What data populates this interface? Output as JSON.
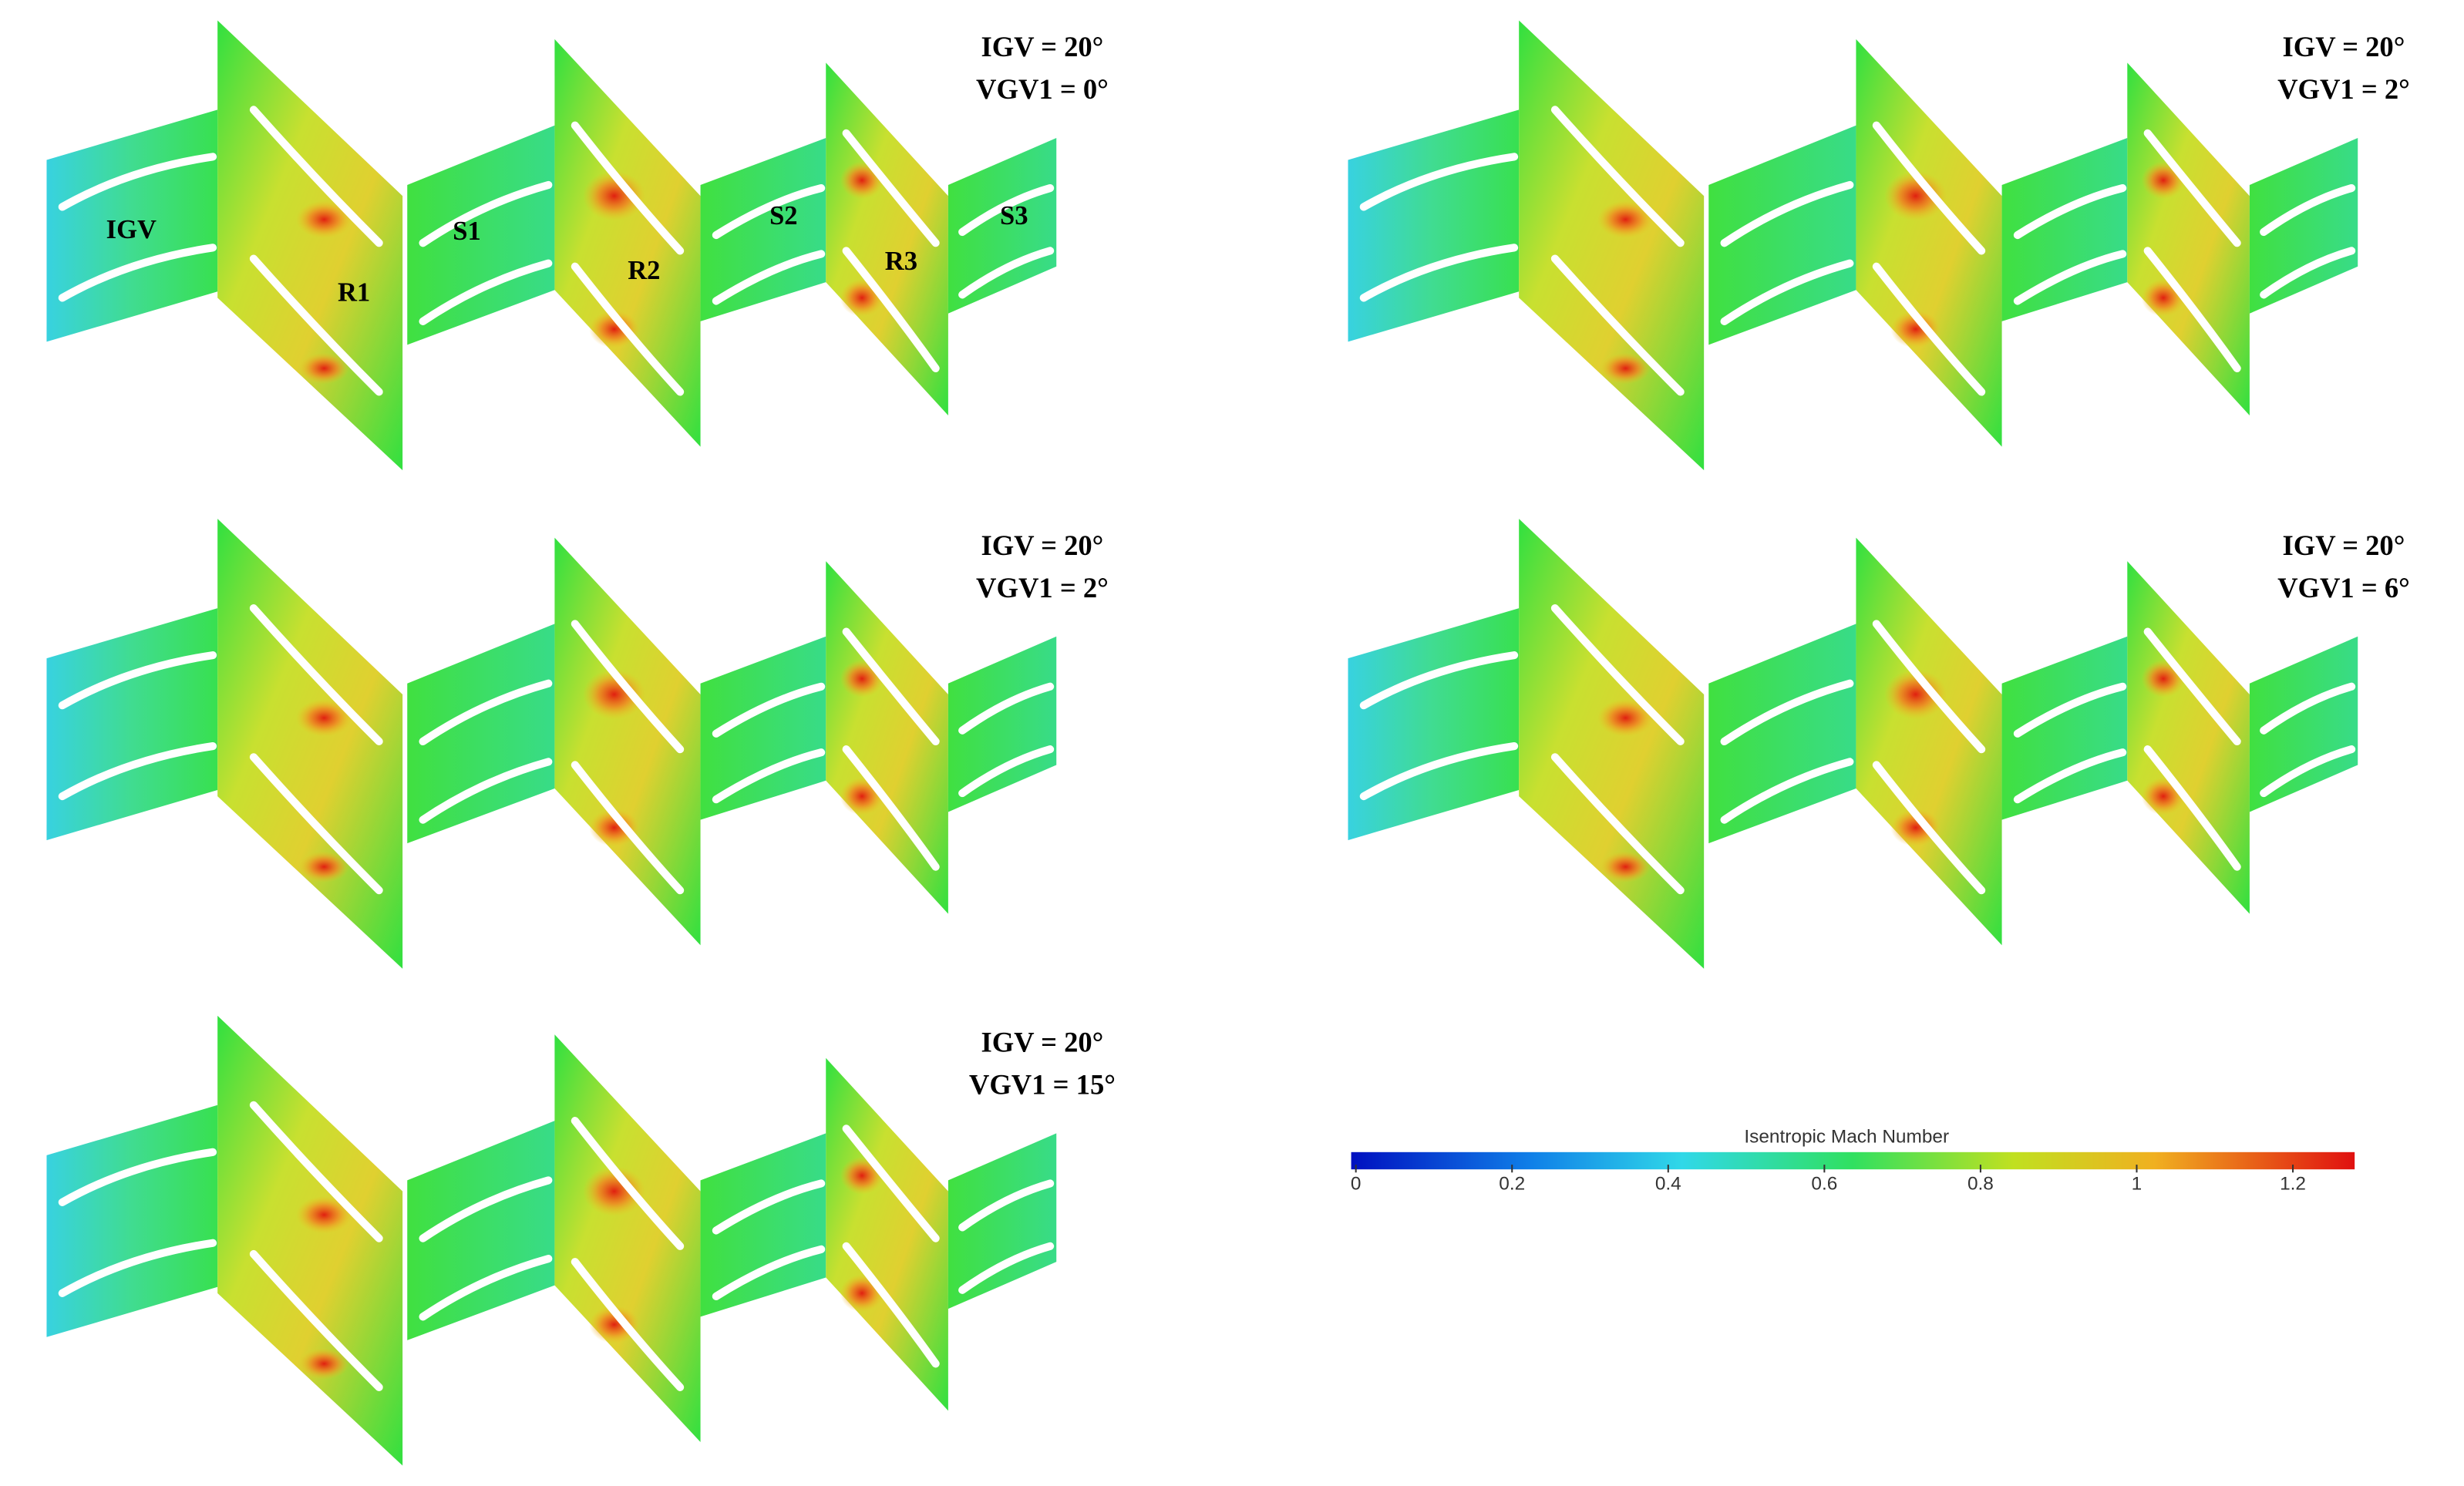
{
  "panels": [
    {
      "igv": "IGV = 20°",
      "vgv": "VGV1 = 0°"
    },
    {
      "igv": "IGV = 20°",
      "vgv": "VGV1 =   2°"
    },
    {
      "igv": "IGV = 20°",
      "vgv": "VGV1 = 2°"
    },
    {
      "igv": "IGV = 20°",
      "vgv": "VGV1 = 6°"
    },
    {
      "igv": "IGV = 20°",
      "vgv": "VGV1 = 15°"
    }
  ],
  "blade_labels": [
    "IGV",
    "R1",
    "S1",
    "R2",
    "S2",
    "R3",
    "S3"
  ],
  "colorbar": {
    "title": "Isentropic Mach Number",
    "ticks": [
      "0",
      "0.2",
      "0.4",
      "0.6",
      "0.8",
      "1",
      "1.2"
    ]
  }
}
